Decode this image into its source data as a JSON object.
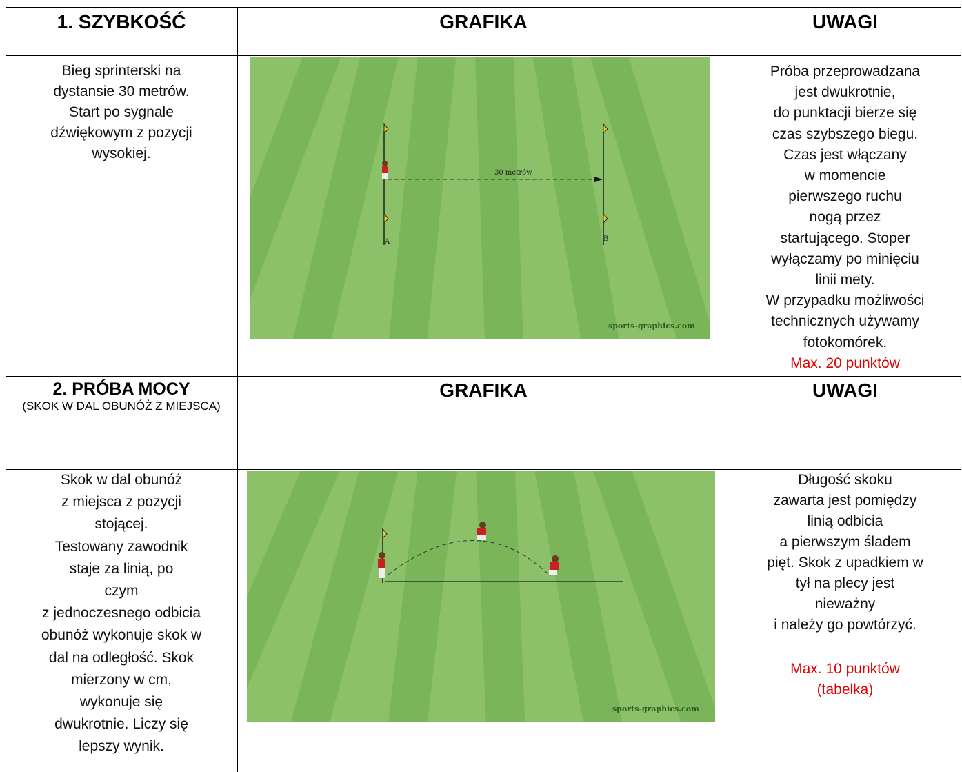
{
  "sections": [
    {
      "header": {
        "title": "1. SZYBKOŚĆ",
        "graphic": "GRAFIKA",
        "notes": "UWAGI"
      },
      "description": [
        "Bieg sprinterski na",
        "dystansie 30 metrów.",
        "Start po sygnale",
        "dźwiękowym z pozycji",
        "wysokiej."
      ],
      "image": {
        "distance": "30 metrów",
        "start": "A",
        "finish": "B",
        "watermark": "sports-graphics.com"
      },
      "notes": [
        "Próba przeprowadzana",
        "jest dwukrotnie,",
        "do punktacji bierze się",
        "czas szybszego biegu.",
        "Czas jest włączany",
        "w momencie",
        "pierwszego ruchu",
        "nogą przez",
        "startującego. Stoper",
        "wyłączamy po minięciu",
        "linii mety.",
        "W przypadku możliwości",
        "technicznych używamy",
        "fotokomórek."
      ],
      "score": [
        "Max. 20 punktów"
      ]
    },
    {
      "header": {
        "title": "2. PRÓBA MOCY",
        "subtitle": "(SKOK W DAL OBUNÓŻ Z MIEJSCA)",
        "graphic": "GRAFIKA",
        "notes": "UWAGI"
      },
      "description": [
        "Skok w dal obunóż",
        "z miejsca z pozycji",
        "stojącej.",
        "Testowany zawodnik",
        "staje za linią, po",
        "czym",
        "z jednoczesnego odbicia",
        "obunóż wykonuje skok w",
        "dal na odległość. Skok",
        "mierzony w cm,",
        "wykonuje się",
        "dwukrotnie. Liczy się",
        "lepszy wynik."
      ],
      "image": {
        "watermark": "sports-graphics.com"
      },
      "notes": [
        "Długość skoku",
        "zawarta jest pomiędzy",
        "linią odbicia",
        "a pierwszym śladem",
        "pięt. Skok z upadkiem w",
        "tył na plecy jest",
        "nieważny",
        "i należy go powtórzyć."
      ],
      "score": [
        "Max. 10 punktów",
        "(tabelka)"
      ]
    }
  ]
}
